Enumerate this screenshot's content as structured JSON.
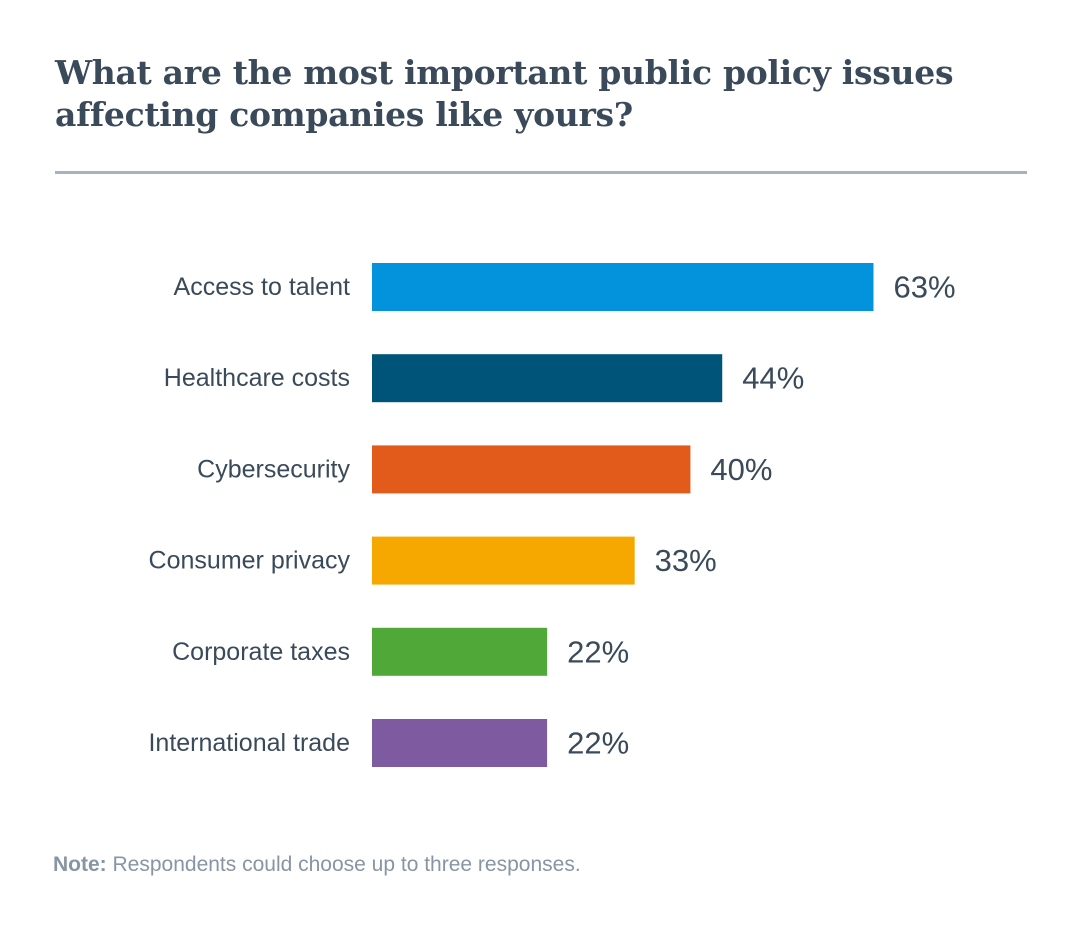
{
  "chart_data": {
    "type": "bar",
    "orientation": "horizontal",
    "title": "What are the most important public policy issues affecting companies like yours?",
    "title_lines": [
      "What are the most important public policy issues",
      "affecting companies like yours?"
    ],
    "categories": [
      "Access to talent",
      "Healthcare costs",
      "Cybersecurity",
      "Consumer privacy",
      "Corporate taxes",
      "International trade"
    ],
    "values": [
      63,
      44,
      40,
      33,
      22,
      22
    ],
    "value_labels": [
      "63%",
      "44%",
      "40%",
      "33%",
      "22%",
      "22%"
    ],
    "colors": [
      "#0393dc",
      "#005479",
      "#e35b1a",
      "#f6a800",
      "#50a838",
      "#7e5ba1"
    ],
    "xlabel": "",
    "ylabel": "",
    "xlim": [
      0,
      100
    ],
    "grid": false,
    "legend": "none"
  },
  "note": {
    "label": "Note:",
    "text": " Respondents could choose up to three responses."
  }
}
